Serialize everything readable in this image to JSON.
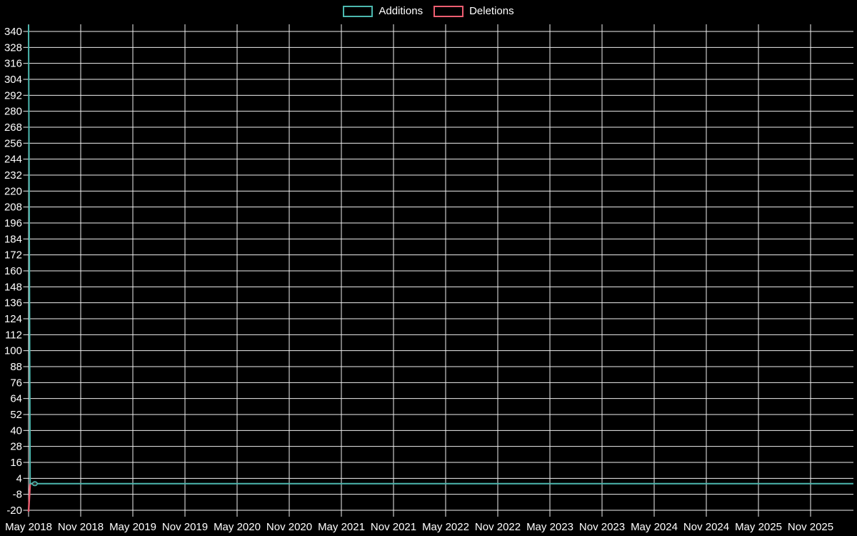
{
  "legend": {
    "items": [
      {
        "label": "Additions",
        "color": "#4cb8af"
      },
      {
        "label": "Deletions",
        "color": "#ed5e71"
      }
    ]
  },
  "chart_data": {
    "type": "line",
    "title": "",
    "background": "#000000",
    "text_color": "#ffffff",
    "grid_color": "#f0f0f0",
    "grid": true,
    "legend_position": "top-center",
    "x_ticks": [
      "May 2018",
      "Nov 2018",
      "May 2019",
      "Nov 2019",
      "May 2020",
      "Nov 2020",
      "May 2021",
      "Nov 2021",
      "May 2022",
      "Nov 2022",
      "May 2023",
      "Nov 2023",
      "May 2024",
      "Nov 2024",
      "May 2025",
      "Nov 2025"
    ],
    "y_ticks": [
      340,
      328,
      316,
      304,
      292,
      280,
      268,
      256,
      244,
      232,
      220,
      208,
      196,
      184,
      172,
      160,
      148,
      136,
      124,
      112,
      100,
      88,
      76,
      64,
      52,
      40,
      28,
      16,
      4,
      -8,
      -20
    ],
    "y_axis": {
      "min": -20,
      "max": 340,
      "step": 12
    },
    "x_unit": "series point x values are in x_ticks index units (0 = May 2018, 1 = Nov 2018, 6 months per unit); y values estimated from pixels",
    "series": [
      {
        "name": "Additions",
        "color": "#4cb8af",
        "stroke_width": 2,
        "points": [
          {
            "x": 0,
            "y": 345
          },
          {
            "x": 0.03,
            "y": 0
          },
          {
            "x": 0.12,
            "y": 0
          },
          {
            "x": 15.82,
            "y": 0
          }
        ],
        "marker_point": {
          "x": 0.12,
          "y": 0
        }
      },
      {
        "name": "Deletions",
        "color": "#ed5e71",
        "stroke_width": 2.4,
        "points": [
          {
            "x": 0,
            "y": -21
          },
          {
            "x": 0.03,
            "y": 0
          },
          {
            "x": 0.12,
            "y": 0
          }
        ]
      }
    ]
  }
}
